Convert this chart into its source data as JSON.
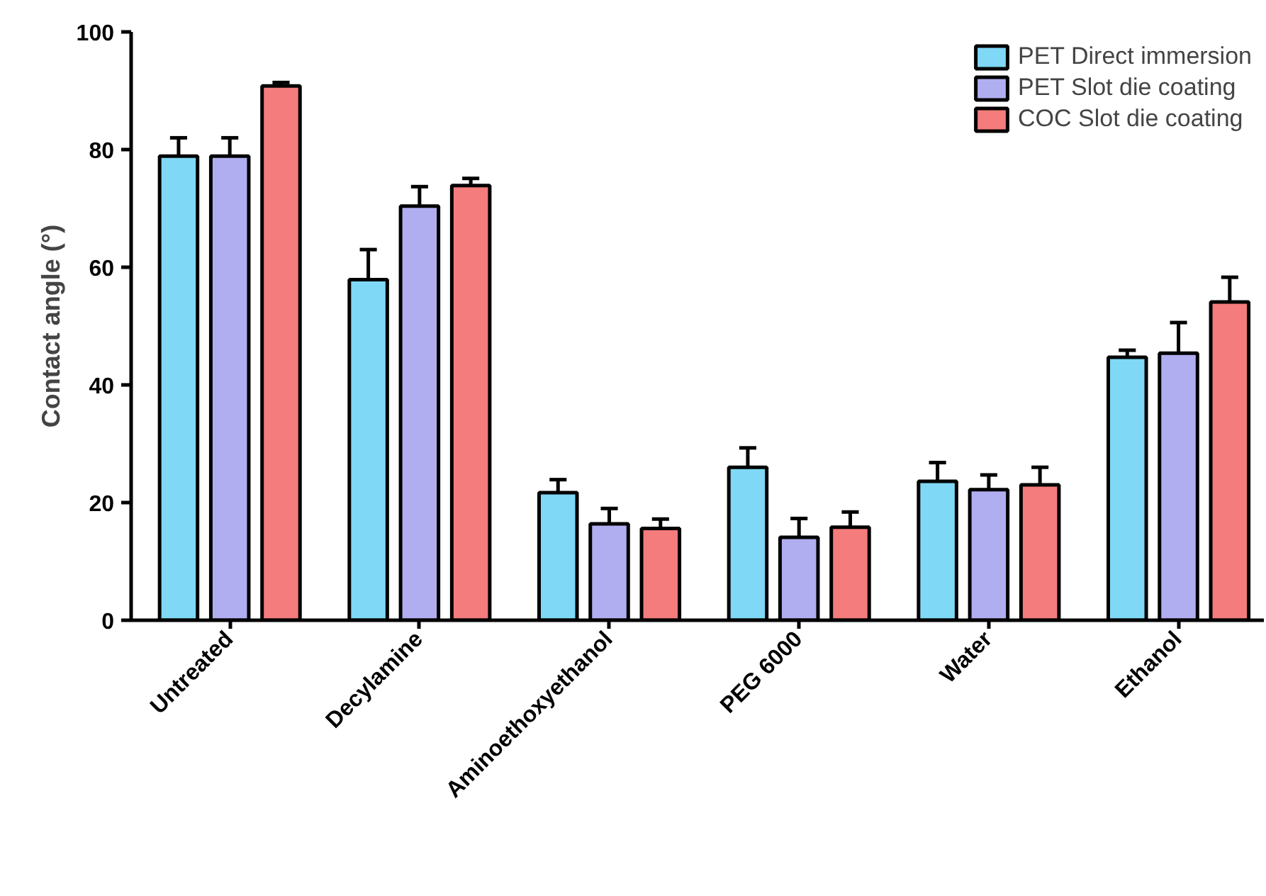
{
  "chart_data": {
    "type": "bar",
    "ylabel": "Contact angle (°)",
    "categories": [
      "Untreated",
      "Decylamine",
      "Aminoethoxyethanol",
      "PEG 6000",
      "Water",
      "Ethanol"
    ],
    "series": [
      {
        "name": "PET Direct immersion",
        "color": "#7fd8f5",
        "values": [
          78.9,
          57.9,
          21.7,
          26.0,
          23.6,
          44.7
        ],
        "errors": [
          3.1,
          5.1,
          2.2,
          3.3,
          3.2,
          1.2
        ]
      },
      {
        "name": "PET Slot die coating",
        "color": "#b0aef0",
        "values": [
          78.9,
          70.4,
          16.4,
          14.1,
          22.2,
          45.4
        ],
        "errors": [
          3.1,
          3.3,
          2.6,
          3.2,
          2.5,
          5.2
        ]
      },
      {
        "name": "COC Slot die coating",
        "color": "#f47c7c",
        "values": [
          90.8,
          73.9,
          15.6,
          15.8,
          23.0,
          54.1
        ],
        "errors": [
          0.6,
          1.2,
          1.6,
          2.6,
          3.0,
          4.2
        ]
      }
    ],
    "ylim": [
      0,
      100
    ],
    "yticks": [
      0,
      20,
      40,
      60,
      80,
      100
    ],
    "grid": false,
    "legend": "top right"
  }
}
